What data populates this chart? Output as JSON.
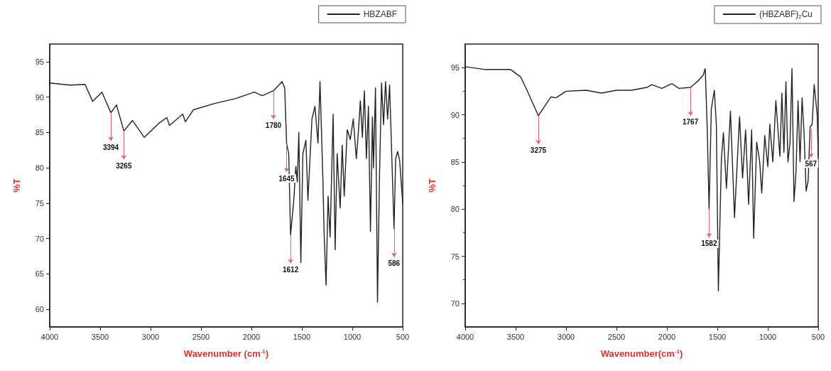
{
  "chart_data": [
    {
      "type": "line",
      "xlabel": "Wavenumber (cm$^{-1}$)",
      "ylabel": "%T",
      "xlim": [
        4000,
        500
      ],
      "xticks": [
        4000,
        3500,
        3000,
        2500,
        2000,
        1500,
        1000,
        500
      ],
      "ylim": [
        57.5,
        97.5
      ],
      "yticks": [
        60,
        65,
        70,
        75,
        80,
        85,
        90,
        95
      ],
      "grid": false,
      "legend": "top right",
      "marker": "none",
      "line_style": "solid",
      "series": [
        {
          "name": "HBZABF",
          "color": "#222222",
          "x": [
            4000,
            3800,
            3650,
            3574,
            3482,
            3394,
            3338,
            3265,
            3180,
            3062,
            2918,
            2839,
            2812,
            2681,
            2655,
            2576,
            2366,
            2156,
            1972,
            1893,
            1782,
            1696,
            1670,
            1651,
            1630,
            1612,
            1580,
            1560,
            1545,
            1530,
            1510,
            1490,
            1460,
            1440,
            1400,
            1370,
            1340,
            1320,
            1290,
            1280,
            1260,
            1240,
            1220,
            1190,
            1170,
            1150,
            1120,
            1100,
            1080,
            1050,
            1020,
            990,
            960,
            940,
            920,
            900,
            880,
            860,
            840,
            820,
            800,
            790,
            770,
            750,
            730,
            710,
            690,
            670,
            650,
            630,
            610,
            586,
            570,
            550,
            530,
            500
          ],
          "values": [
            92.0,
            91.7,
            91.8,
            89.4,
            90.7,
            87.8,
            88.9,
            85.2,
            86.7,
            84.3,
            86.3,
            87.1,
            86.0,
            87.6,
            86.5,
            88.2,
            89.1,
            89.8,
            90.7,
            90.2,
            90.9,
            92.2,
            91.3,
            83.4,
            82.0,
            70.5,
            75.4,
            80.2,
            78.0,
            85.0,
            66.6,
            82.0,
            83.9,
            75.4,
            86.9,
            88.7,
            83.5,
            92.2,
            77.6,
            71.0,
            63.4,
            76.0,
            70.2,
            87.6,
            68.4,
            82.0,
            74.3,
            83.2,
            76.0,
            85.4,
            84.0,
            86.9,
            81.3,
            85.0,
            89.5,
            84.3,
            90.9,
            81.3,
            88.7,
            71.0,
            87.2,
            80.0,
            91.3,
            61.0,
            79.0,
            92.0,
            86.1,
            92.2,
            86.9,
            91.7,
            82.4,
            71.4,
            81.3,
            82.3,
            81.0,
            75.0
          ]
        }
      ],
      "annotations": [
        {
          "text": "3394",
          "x": 3394,
          "y": 87.8
        },
        {
          "text": "3265",
          "x": 3265,
          "y": 85.2
        },
        {
          "text": "1780",
          "x": 1782,
          "y": 90.9
        },
        {
          "text": "1645",
          "x": 1651,
          "y": 83.4
        },
        {
          "text": "1612",
          "x": 1612,
          "y": 70.5
        },
        {
          "text": "586",
          "x": 586,
          "y": 71.4
        }
      ]
    },
    {
      "type": "line",
      "xlabel": "Wavenumber(cm$^{-1}$)",
      "ylabel": "%T",
      "xlim": [
        4000,
        500
      ],
      "xticks": [
        4000,
        3500,
        3000,
        2500,
        2000,
        1500,
        1000,
        500
      ],
      "ylim": [
        67.5,
        97.5
      ],
      "yticks": [
        70,
        75,
        80,
        85,
        90,
        95
      ],
      "grid": false,
      "legend": "top right",
      "marker": "none",
      "line_style": "solid",
      "series": [
        {
          "name": "(HBZABF)$_{2}$Cu",
          "color": "#222222",
          "x": [
            4000,
            3800,
            3550,
            3450,
            3400,
            3275,
            3150,
            3100,
            3000,
            2800,
            2650,
            2500,
            2350,
            2200,
            2150,
            2050,
            1950,
            1880,
            1767,
            1700,
            1640,
            1620,
            1600,
            1582,
            1560,
            1530,
            1510,
            1490,
            1460,
            1440,
            1410,
            1370,
            1330,
            1280,
            1250,
            1220,
            1190,
            1160,
            1140,
            1110,
            1080,
            1060,
            1030,
            1000,
            980,
            950,
            920,
            880,
            860,
            840,
            820,
            800,
            780,
            760,
            740,
            720,
            700,
            680,
            660,
            640,
            620,
            600,
            580,
            560,
            540,
            510,
            500
          ],
          "values": [
            95.1,
            94.8,
            94.8,
            94.0,
            92.9,
            89.9,
            91.9,
            91.8,
            92.5,
            92.6,
            92.3,
            92.6,
            92.6,
            92.9,
            93.2,
            92.8,
            93.3,
            92.8,
            92.9,
            93.5,
            94.2,
            94.9,
            88.4,
            80.0,
            90.6,
            92.6,
            89.0,
            71.3,
            85.3,
            88.1,
            82.2,
            90.4,
            79.1,
            89.8,
            83.3,
            88.4,
            80.5,
            88.4,
            76.9,
            87.1,
            85.0,
            81.7,
            87.8,
            84.5,
            89.0,
            85.0,
            91.5,
            85.6,
            92.3,
            86.0,
            93.5,
            85.0,
            87.0,
            94.9,
            80.8,
            84.0,
            91.5,
            85.0,
            91.8,
            88.0,
            81.9,
            83.0,
            88.7,
            89.0,
            93.2,
            90.0,
            85.6
          ]
        }
      ],
      "annotations": [
        {
          "text": "3275",
          "x": 3275,
          "y": 89.9
        },
        {
          "text": "1767",
          "x": 1767,
          "y": 92.9
        },
        {
          "text": "1582",
          "x": 1582,
          "y": 80.0
        },
        {
          "text": "567",
          "x": 572,
          "y": 88.5
        }
      ]
    }
  ]
}
